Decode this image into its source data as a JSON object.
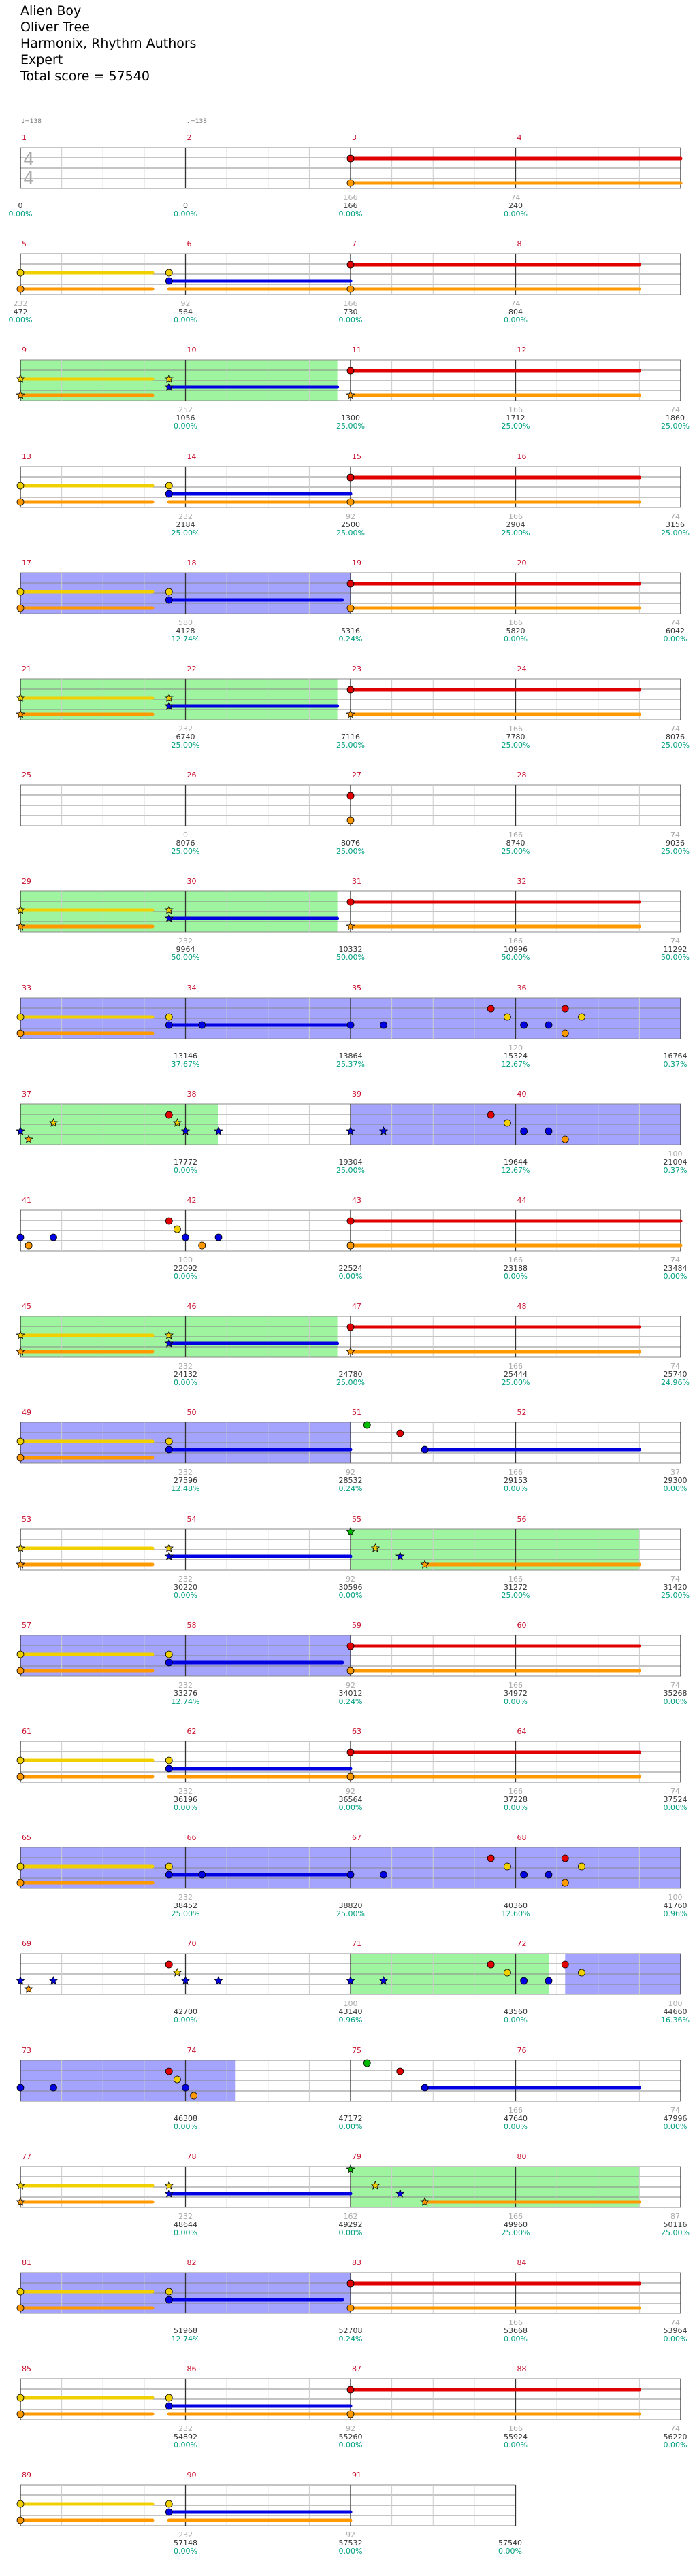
{
  "song": {
    "title": "Alien Boy",
    "artist": "Oliver Tree",
    "charter": "Harmonix, Rhythm Authors",
    "difficulty": "Expert",
    "total_score": "Total score = 57540"
  },
  "tempos": [
    "♩=138",
    "♩=138"
  ],
  "colors": {
    "green": "#00bb00",
    "red": "#e00000",
    "yellow": "#f0d000",
    "blue": "#0000e0",
    "orange": "#ff9900",
    "overdrive": "#9ff59f",
    "solo": "#a4a4ff",
    "measure_number": "#c8102e",
    "multiplier": "#00a080"
  },
  "rows": [
    {
      "measures": [
        "1",
        "2",
        "3",
        "4"
      ],
      "labels": [
        {
          "a": "",
          "b": "0",
          "c": "0.00%"
        },
        {
          "a": "",
          "b": "0",
          "c": "0.00%"
        },
        {
          "a": "166",
          "b": "166",
          "c": "0.00%"
        },
        {
          "a": "74",
          "b": "240",
          "c": "0.00%"
        }
      ]
    },
    {
      "measures": [
        "5",
        "6",
        "7",
        "8"
      ],
      "labels": [
        {
          "a": "232",
          "b": "472",
          "c": "0.00%"
        },
        {
          "a": "92",
          "b": "564",
          "c": "0.00%"
        },
        {
          "a": "166",
          "b": "730",
          "c": "0.00%"
        },
        {
          "a": "74",
          "b": "804",
          "c": "0.00%"
        }
      ]
    },
    {
      "measures": [
        "9",
        "10",
        "11",
        "12"
      ],
      "labels": [
        {
          "a": "",
          "b": "",
          "c": ""
        },
        {
          "a": "252",
          "b": "1056",
          "c": "0.00%"
        },
        {
          "a": "",
          "b": "1300",
          "c": "25.00%"
        },
        {
          "a": "166",
          "b": "1712",
          "c": "25.00%"
        },
        {
          "a": "74",
          "b": "1860",
          "c": "25.00%"
        }
      ]
    },
    {
      "measures": [
        "13",
        "14",
        "15",
        "16"
      ],
      "labels": [
        {
          "a": "",
          "b": "",
          "c": ""
        },
        {
          "a": "232",
          "b": "2184",
          "c": "25.00%"
        },
        {
          "a": "92",
          "b": "2500",
          "c": "25.00%"
        },
        {
          "a": "166",
          "b": "2904",
          "c": "25.00%"
        },
        {
          "a": "74",
          "b": "3156",
          "c": "25.00%"
        }
      ]
    },
    {
      "measures": [
        "17",
        "18",
        "19",
        "20"
      ],
      "labels": [
        {
          "a": "",
          "b": "",
          "c": ""
        },
        {
          "a": "580",
          "b": "4128",
          "c": "12.74%"
        },
        {
          "a": "",
          "b": "5316",
          "c": "0.24%"
        },
        {
          "a": "166",
          "b": "5820",
          "c": "0.00%"
        },
        {
          "a": "74",
          "b": "6042",
          "c": "0.00%"
        }
      ]
    },
    {
      "measures": [
        "21",
        "22",
        "23",
        "24"
      ],
      "labels": [
        {
          "a": "",
          "b": "",
          "c": ""
        },
        {
          "a": "232",
          "b": "6740",
          "c": "25.00%"
        },
        {
          "a": "",
          "b": "7116",
          "c": "25.00%"
        },
        {
          "a": "166",
          "b": "7780",
          "c": "25.00%"
        },
        {
          "a": "74",
          "b": "8076",
          "c": "25.00%"
        }
      ]
    },
    {
      "measures": [
        "25",
        "26",
        "27",
        "28"
      ],
      "labels": [
        {
          "a": "",
          "b": "",
          "c": ""
        },
        {
          "a": "0",
          "b": "8076",
          "c": "25.00%"
        },
        {
          "a": "",
          "b": "8076",
          "c": "25.00%"
        },
        {
          "a": "166",
          "b": "8740",
          "c": "25.00%"
        },
        {
          "a": "74",
          "b": "9036",
          "c": "25.00%"
        }
      ]
    },
    {
      "measures": [
        "29",
        "30",
        "31",
        "32"
      ],
      "labels": [
        {
          "a": "",
          "b": "",
          "c": ""
        },
        {
          "a": "232",
          "b": "9964",
          "c": "50.00%"
        },
        {
          "a": "",
          "b": "10332",
          "c": "50.00%"
        },
        {
          "a": "166",
          "b": "10996",
          "c": "50.00%"
        },
        {
          "a": "74",
          "b": "11292",
          "c": "50.00%"
        }
      ]
    },
    {
      "measures": [
        "33",
        "34",
        "35",
        "36"
      ],
      "labels": [
        {
          "a": "",
          "b": "",
          "c": ""
        },
        {
          "a": "",
          "b": "13146",
          "c": "37.67%"
        },
        {
          "a": "",
          "b": "13864",
          "c": "25.37%"
        },
        {
          "a": "120",
          "b": "15324",
          "c": "12.67%"
        },
        {
          "a": "",
          "b": "16764",
          "c": "0.37%"
        }
      ]
    },
    {
      "measures": [
        "37",
        "38",
        "39",
        "40"
      ],
      "labels": [
        {
          "a": "",
          "b": "",
          "c": ""
        },
        {
          "a": "",
          "b": "17772",
          "c": "0.00%"
        },
        {
          "a": "",
          "b": "19304",
          "c": "25.00%"
        },
        {
          "a": "",
          "b": "19644",
          "c": "12.67%"
        },
        {
          "a": "100",
          "b": "21004",
          "c": "0.37%"
        }
      ]
    },
    {
      "measures": [
        "41",
        "42",
        "43",
        "44"
      ],
      "labels": [
        {
          "a": "",
          "b": "",
          "c": ""
        },
        {
          "a": "",
          "b": "",
          "c": ""
        },
        {
          "a": "100",
          "b": "22092",
          "c": "0.00%"
        },
        {
          "a": "",
          "b": "22524",
          "c": "0.00%"
        },
        {
          "a": "166",
          "b": "23188",
          "c": "0.00%"
        },
        {
          "a": "74",
          "b": "23484",
          "c": "0.00%"
        }
      ]
    },
    {
      "measures": [
        "45",
        "46",
        "47",
        "48"
      ],
      "labels": [
        {
          "a": "",
          "b": "",
          "c": ""
        },
        {
          "a": "232",
          "b": "24132",
          "c": "0.00%"
        },
        {
          "a": "",
          "b": "24780",
          "c": "25.00%"
        },
        {
          "a": "166",
          "b": "25444",
          "c": "25.00%"
        },
        {
          "a": "74",
          "b": "25740",
          "c": "24.96%"
        }
      ]
    },
    {
      "measures": [
        "49",
        "50",
        "51",
        "52"
      ],
      "labels": [
        {
          "a": "",
          "b": "",
          "c": ""
        },
        {
          "a": "232",
          "b": "27596",
          "c": "12.48%"
        },
        {
          "a": "92",
          "b": "28532",
          "c": "0.24%"
        },
        {
          "a": "166",
          "b": "29153",
          "c": "0.00%"
        },
        {
          "a": "37",
          "b": "29300",
          "c": "0.00%"
        }
      ]
    },
    {
      "measures": [
        "53",
        "54",
        "55",
        "56"
      ],
      "labels": [
        {
          "a": "",
          "b": "",
          "c": ""
        },
        {
          "a": "232",
          "b": "30220",
          "c": "0.00%"
        },
        {
          "a": "92",
          "b": "30596",
          "c": "0.00%"
        },
        {
          "a": "166",
          "b": "31272",
          "c": "25.00%"
        },
        {
          "a": "74",
          "b": "31420",
          "c": "25.00%"
        }
      ]
    },
    {
      "measures": [
        "57",
        "58",
        "59",
        "60"
      ],
      "labels": [
        {
          "a": "",
          "b": "",
          "c": ""
        },
        {
          "a": "232",
          "b": "33276",
          "c": "12.74%"
        },
        {
          "a": "92",
          "b": "34012",
          "c": "0.24%"
        },
        {
          "a": "166",
          "b": "34972",
          "c": "0.00%"
        },
        {
          "a": "74",
          "b": "35268",
          "c": "0.00%"
        }
      ]
    },
    {
      "measures": [
        "61",
        "62",
        "63",
        "64"
      ],
      "labels": [
        {
          "a": "",
          "b": "",
          "c": ""
        },
        {
          "a": "232",
          "b": "36196",
          "c": "0.00%"
        },
        {
          "a": "92",
          "b": "36564",
          "c": "0.00%"
        },
        {
          "a": "166",
          "b": "37228",
          "c": "0.00%"
        },
        {
          "a": "74",
          "b": "37524",
          "c": "0.00%"
        }
      ]
    },
    {
      "measures": [
        "65",
        "66",
        "67",
        "68"
      ],
      "labels": [
        {
          "a": "",
          "b": "",
          "c": ""
        },
        {
          "a": "232",
          "b": "38452",
          "c": "25.00%"
        },
        {
          "a": "",
          "b": "38820",
          "c": "25.00%"
        },
        {
          "a": "",
          "b": "40360",
          "c": "12.60%"
        },
        {
          "a": "100",
          "b": "41760",
          "c": "0.96%"
        }
      ]
    },
    {
      "measures": [
        "69",
        "70",
        "71",
        "72"
      ],
      "labels": [
        {
          "a": "",
          "b": "",
          "c": ""
        },
        {
          "a": "",
          "b": "42700",
          "c": "0.00%"
        },
        {
          "a": "100",
          "b": "43140",
          "c": "0.96%"
        },
        {
          "a": "",
          "b": "43560",
          "c": "0.00%"
        },
        {
          "a": "100",
          "b": "44660",
          "c": "16.36%"
        }
      ]
    },
    {
      "measures": [
        "73",
        "74",
        "75",
        "76"
      ],
      "labels": [
        {
          "a": "",
          "b": "",
          "c": ""
        },
        {
          "a": "",
          "b": "",
          "c": ""
        },
        {
          "a": "",
          "b": "46308",
          "c": "0.00%"
        },
        {
          "a": "",
          "b": "47172",
          "c": "0.00%"
        },
        {
          "a": "166",
          "b": "47640",
          "c": "0.00%"
        },
        {
          "a": "74",
          "b": "47996",
          "c": "0.00%"
        }
      ]
    },
    {
      "measures": [
        "77",
        "78",
        "79",
        "80"
      ],
      "labels": [
        {
          "a": "",
          "b": "",
          "c": ""
        },
        {
          "a": "232",
          "b": "48644",
          "c": "0.00%"
        },
        {
          "a": "162",
          "b": "49292",
          "c": "0.00%"
        },
        {
          "a": "166",
          "b": "49960",
          "c": "25.00%"
        },
        {
          "a": "87",
          "b": "50116",
          "c": "25.00%"
        }
      ]
    },
    {
      "measures": [
        "81",
        "82",
        "83",
        "84"
      ],
      "labels": [
        {
          "a": "",
          "b": "",
          "c": ""
        },
        {
          "a": "",
          "b": "51968",
          "c": "12.74%"
        },
        {
          "a": "",
          "b": "52708",
          "c": "0.24%"
        },
        {
          "a": "166",
          "b": "53668",
          "c": "0.00%"
        },
        {
          "a": "74",
          "b": "53964",
          "c": "0.00%"
        }
      ]
    },
    {
      "measures": [
        "85",
        "86",
        "87",
        "88"
      ],
      "labels": [
        {
          "a": "",
          "b": "",
          "c": ""
        },
        {
          "a": "232",
          "b": "54892",
          "c": "0.00%"
        },
        {
          "a": "92",
          "b": "55260",
          "c": "0.00%"
        },
        {
          "a": "166",
          "b": "55924",
          "c": "0.00%"
        },
        {
          "a": "74",
          "b": "56220",
          "c": "0.00%"
        }
      ]
    },
    {
      "measures": [
        "89",
        "90",
        "91"
      ],
      "labels": [
        {
          "a": "",
          "b": "",
          "c": ""
        },
        {
          "a": "232",
          "b": "57148",
          "c": "0.00%"
        },
        {
          "a": "92",
          "b": "57532",
          "c": "0.00%"
        },
        {
          "a": "",
          "b": "57540",
          "c": "0.00%"
        }
      ]
    }
  ]
}
